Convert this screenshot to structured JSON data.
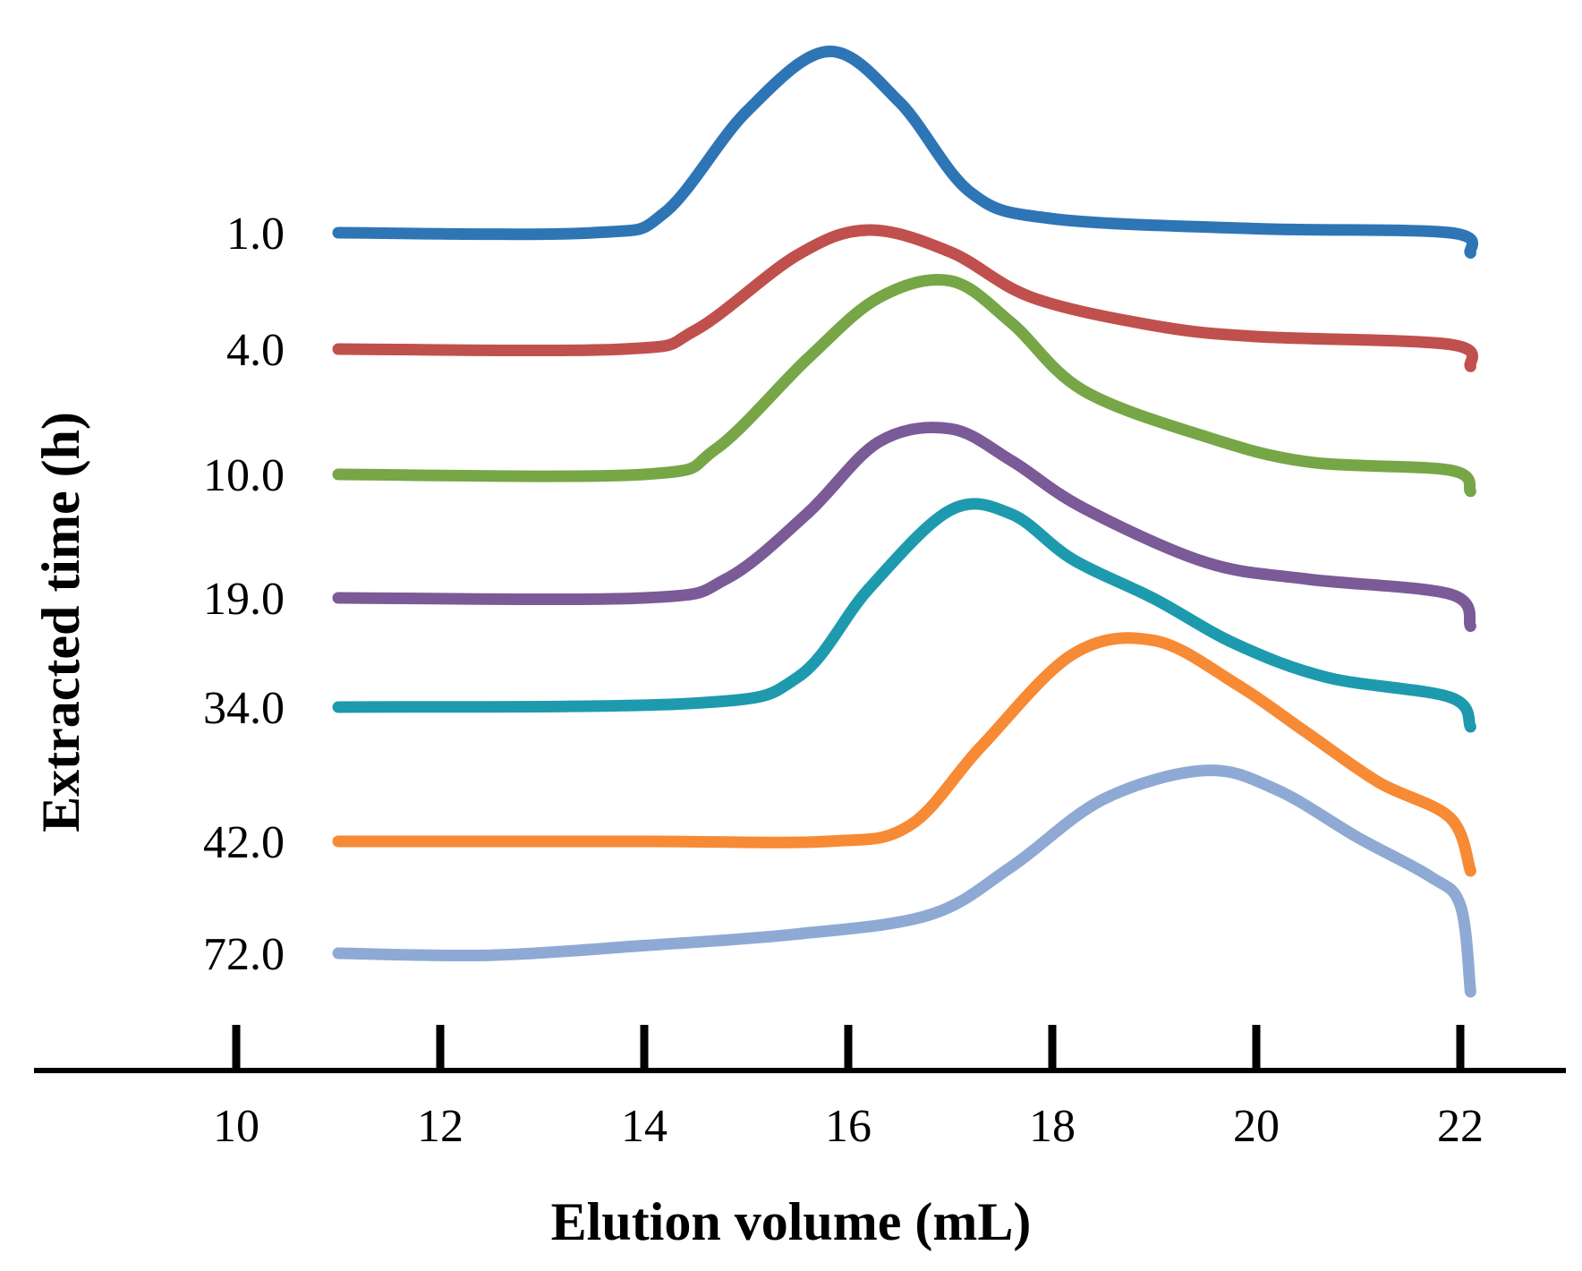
{
  "chart_data": {
    "type": "line",
    "xlabel": "Elution volume (mL)",
    "ylabel": "Extracted time (h)",
    "xlim": [
      8,
      23.5
    ],
    "x_ticks": [
      "10",
      "12",
      "14",
      "16",
      "18",
      "20",
      "22"
    ],
    "grid": false,
    "legend": "none",
    "y_values": "relative signal (stacked offset traces, no y scale printed)",
    "series": [
      {
        "label": "1.0",
        "color": "#2e75b6",
        "points": [
          [
            11,
            0
          ],
          [
            13.5,
            0
          ],
          [
            14.2,
            0.1
          ],
          [
            15,
            0.6
          ],
          [
            15.8,
            0.9
          ],
          [
            16.5,
            0.65
          ],
          [
            17.2,
            0.2
          ],
          [
            18,
            0.07
          ],
          [
            20,
            0.02
          ],
          [
            21.9,
            0
          ],
          [
            22.1,
            -0.1
          ]
        ]
      },
      {
        "label": "4.0",
        "color": "#c0504d",
        "points": [
          [
            11,
            0
          ],
          [
            13.8,
            0
          ],
          [
            14.5,
            0.12
          ],
          [
            15.5,
            0.6
          ],
          [
            16.2,
            0.76
          ],
          [
            17,
            0.62
          ],
          [
            17.8,
            0.33
          ],
          [
            19,
            0.15
          ],
          [
            20,
            0.08
          ],
          [
            21.9,
            0.03
          ],
          [
            22.1,
            -0.11
          ]
        ]
      },
      {
        "label": "10.0",
        "color": "#77a646",
        "points": [
          [
            11,
            0
          ],
          [
            14,
            0
          ],
          [
            14.7,
            0.12
          ],
          [
            15.6,
            0.55
          ],
          [
            16.3,
            0.84
          ],
          [
            17,
            0.92
          ],
          [
            17.6,
            0.72
          ],
          [
            18.3,
            0.4
          ],
          [
            19.5,
            0.18
          ],
          [
            20.5,
            0.06
          ],
          [
            21.9,
            0.02
          ],
          [
            22.1,
            -0.08
          ]
        ]
      },
      {
        "label": "19.0",
        "color": "#7b5a98",
        "points": [
          [
            11,
            0
          ],
          [
            14,
            0
          ],
          [
            14.8,
            0.1
          ],
          [
            15.6,
            0.45
          ],
          [
            16.3,
            0.83
          ],
          [
            17,
            0.9
          ],
          [
            17.6,
            0.73
          ],
          [
            18.3,
            0.48
          ],
          [
            19.5,
            0.19
          ],
          [
            20.5,
            0.1
          ],
          [
            21.9,
            0.02
          ],
          [
            22.1,
            -0.15
          ]
        ]
      },
      {
        "label": "34.0",
        "color": "#1d9aae",
        "points": [
          [
            11,
            0
          ],
          [
            14.5,
            0.02
          ],
          [
            15.5,
            0.15
          ],
          [
            16.2,
            0.6
          ],
          [
            17,
            1.0
          ],
          [
            17.6,
            0.98
          ],
          [
            18.2,
            0.75
          ],
          [
            19,
            0.55
          ],
          [
            19.8,
            0.32
          ],
          [
            20.7,
            0.15
          ],
          [
            21.9,
            0.05
          ],
          [
            22.1,
            -0.1
          ]
        ]
      },
      {
        "label": "42.0",
        "color": "#f78a35",
        "points": [
          [
            11,
            0
          ],
          [
            14,
            0
          ],
          [
            15.8,
            0
          ],
          [
            16.6,
            0.08
          ],
          [
            17.3,
            0.48
          ],
          [
            18.2,
            0.95
          ],
          [
            19,
            1.02
          ],
          [
            19.8,
            0.8
          ],
          [
            20.5,
            0.55
          ],
          [
            21.2,
            0.3
          ],
          [
            21.9,
            0.12
          ],
          [
            22.1,
            -0.15
          ]
        ]
      },
      {
        "label": "72.0",
        "color": "#8eaad4",
        "points": [
          [
            11,
            0
          ],
          [
            12.5,
            -0.01
          ],
          [
            14,
            0.04
          ],
          [
            15.5,
            0.1
          ],
          [
            16.8,
            0.2
          ],
          [
            17.6,
            0.45
          ],
          [
            18.5,
            0.8
          ],
          [
            19.5,
            0.95
          ],
          [
            20.2,
            0.85
          ],
          [
            21,
            0.6
          ],
          [
            21.7,
            0.4
          ],
          [
            22,
            0.25
          ],
          [
            22.1,
            -0.2
          ]
        ]
      }
    ]
  }
}
